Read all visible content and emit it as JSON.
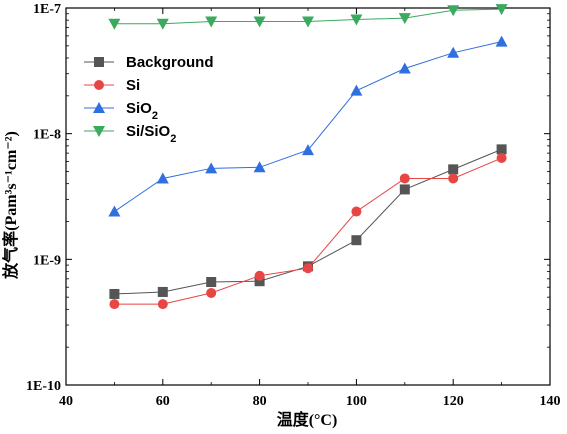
{
  "chart_data": {
    "type": "line",
    "title": "",
    "xlabel": "温度(°C)",
    "ylabel": "放气率(Pam³s⁻¹cm⁻²)",
    "xlim": [
      40,
      140
    ],
    "ylim": [
      1e-10,
      1e-07
    ],
    "yscale": "log",
    "x_ticks": [
      40,
      60,
      80,
      100,
      120,
      140
    ],
    "x_tick_labels": [
      "40",
      "60",
      "80",
      "100",
      "120",
      "140"
    ],
    "y_ticks": [
      1e-10,
      1e-09,
      1e-08,
      1e-07
    ],
    "y_tick_labels": [
      "1E-10",
      "1E-9",
      "1E-8",
      "1E-7"
    ],
    "grid": false,
    "legend_position": "upper-left",
    "x": [
      50,
      60,
      70,
      80,
      90,
      100,
      110,
      120,
      130
    ],
    "series": [
      {
        "name": "Background",
        "color": "#555555",
        "marker": "square",
        "values": [
          5.3e-10,
          5.5e-10,
          6.6e-10,
          6.7e-10,
          8.8e-10,
          1.42e-09,
          3.6e-09,
          5.2e-09,
          7.5e-09
        ]
      },
      {
        "name": "Si",
        "color": "#e84545",
        "marker": "circle",
        "values": [
          4.4e-10,
          4.4e-10,
          5.4e-10,
          7.4e-10,
          8.5e-10,
          2.4e-09,
          4.4e-09,
          4.4e-09,
          6.4e-09
        ]
      },
      {
        "name": "SiO2",
        "color": "#2f6fe0",
        "marker": "triangle-up",
        "values": [
          2.4e-09,
          4.4e-09,
          5.3e-09,
          5.4e-09,
          7.4e-09,
          2.2e-08,
          3.3e-08,
          4.4e-08,
          5.4e-08
        ]
      },
      {
        "name": "Si/SiO2",
        "color": "#3aaa5e",
        "marker": "triangle-down",
        "values": [
          7.5e-08,
          7.5e-08,
          7.8e-08,
          7.8e-08,
          7.8e-08,
          8.1e-08,
          8.3e-08,
          9.6e-08,
          9.8e-08
        ]
      }
    ]
  }
}
